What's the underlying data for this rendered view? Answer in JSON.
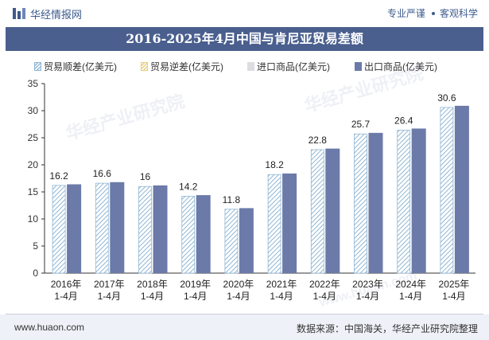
{
  "header": {
    "brand_name": "华经情报网",
    "slogan_left": "专业严谨",
    "slogan_right": "客观科学"
  },
  "legend": {
    "surplus": "贸易顺差(亿美元)",
    "deficit": "贸易逆差(亿美元)",
    "import": "进口商品(亿美元)",
    "export": "出口商品(亿美元)"
  },
  "watermark": {
    "brand_cn": "华经产业研究院",
    "brand_url": "www.huaon.com"
  },
  "footer": {
    "url": "www.huaon.com",
    "source": "数据来源：中国海关，华经产业研究院整理"
  },
  "colors": {
    "title_bg": "#4a5f8e",
    "export_bar": "#6b7aa8",
    "surplus_hatch": "#8fb6d4",
    "deficit_hatch": "#e5cf7a",
    "import_bar": "#dcdde2"
  },
  "chart_data": {
    "type": "bar",
    "title": "2016-2025年4月中国与肯尼亚贸易差额",
    "categories": [
      "2016年\n1-4月",
      "2017年\n1-4月",
      "2018年\n1-4月",
      "2019年\n1-4月",
      "2020年\n1-4月",
      "2021年\n1-4月",
      "2022年\n1-4月",
      "2023年\n1-4月",
      "2024年\n1-4月",
      "2025年\n1-4月"
    ],
    "series": [
      {
        "name": "贸易顺差(亿美元)",
        "values": [
          16.2,
          16.6,
          16.0,
          14.2,
          11.8,
          18.2,
          22.8,
          25.7,
          26.4,
          30.6
        ],
        "labels": [
          "16.2",
          "16.6",
          "16",
          "14.2",
          "11.8",
          "18.2",
          "22.8",
          "25.7",
          "26.4",
          "30.6"
        ]
      },
      {
        "name": "贸易逆差(亿美元)",
        "values": [
          0,
          0,
          0,
          0,
          0,
          0,
          0,
          0,
          0,
          0
        ]
      },
      {
        "name": "进口商品(亿美元)",
        "values": [
          0.2,
          0.2,
          0.2,
          0.2,
          0.2,
          0.2,
          0.2,
          0.2,
          0.3,
          0.3
        ]
      },
      {
        "name": "出口商品(亿美元)",
        "values": [
          16.4,
          16.8,
          16.2,
          14.4,
          12.0,
          18.4,
          23.0,
          25.9,
          26.7,
          30.9
        ]
      }
    ],
    "ylim": [
      0,
      35
    ],
    "yticks": [
      0,
      5,
      10,
      15,
      20,
      25,
      30,
      35
    ],
    "xlabel": "",
    "ylabel": "",
    "legend_position": "top"
  }
}
